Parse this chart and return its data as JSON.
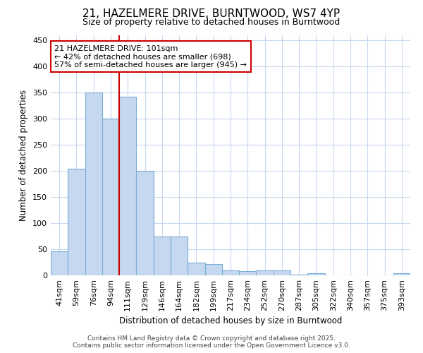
{
  "title": "21, HAZELMERE DRIVE, BURNTWOOD, WS7 4YP",
  "subtitle": "Size of property relative to detached houses in Burntwood",
  "xlabel": "Distribution of detached houses by size in Burntwood",
  "ylabel": "Number of detached properties",
  "bar_labels": [
    "41sqm",
    "59sqm",
    "76sqm",
    "94sqm",
    "111sqm",
    "129sqm",
    "146sqm",
    "164sqm",
    "182sqm",
    "199sqm",
    "217sqm",
    "234sqm",
    "252sqm",
    "270sqm",
    "287sqm",
    "305sqm",
    "322sqm",
    "340sqm",
    "357sqm",
    "375sqm",
    "393sqm"
  ],
  "bar_values": [
    46,
    204,
    350,
    300,
    342,
    200,
    75,
    75,
    24,
    21,
    9,
    8,
    10,
    10,
    1,
    4,
    0,
    0,
    0,
    0,
    4
  ],
  "bar_color": "#c5d8f0",
  "bar_edgecolor": "#7aaed6",
  "background_color": "#ffffff",
  "grid_color": "#c8d8f0",
  "property_line_color": "#cc0000",
  "annotation_text": "21 HAZELMERE DRIVE: 101sqm\n← 42% of detached houses are smaller (698)\n57% of semi-detached houses are larger (945) →",
  "annotation_box_edgecolor": "#cc0000",
  "annotation_box_facecolor": "#ffffff",
  "ylim": [
    0,
    460
  ],
  "yticks": [
    0,
    50,
    100,
    150,
    200,
    250,
    300,
    350,
    400,
    450
  ],
  "footer_line1": "Contains HM Land Registry data © Crown copyright and database right 2025.",
  "footer_line2": "Contains public sector information licensed under the Open Government Licence v3.0.",
  "title_fontsize": 11,
  "subtitle_fontsize": 9,
  "tick_fontsize": 8,
  "label_fontsize": 8.5,
  "footer_fontsize": 6.5
}
